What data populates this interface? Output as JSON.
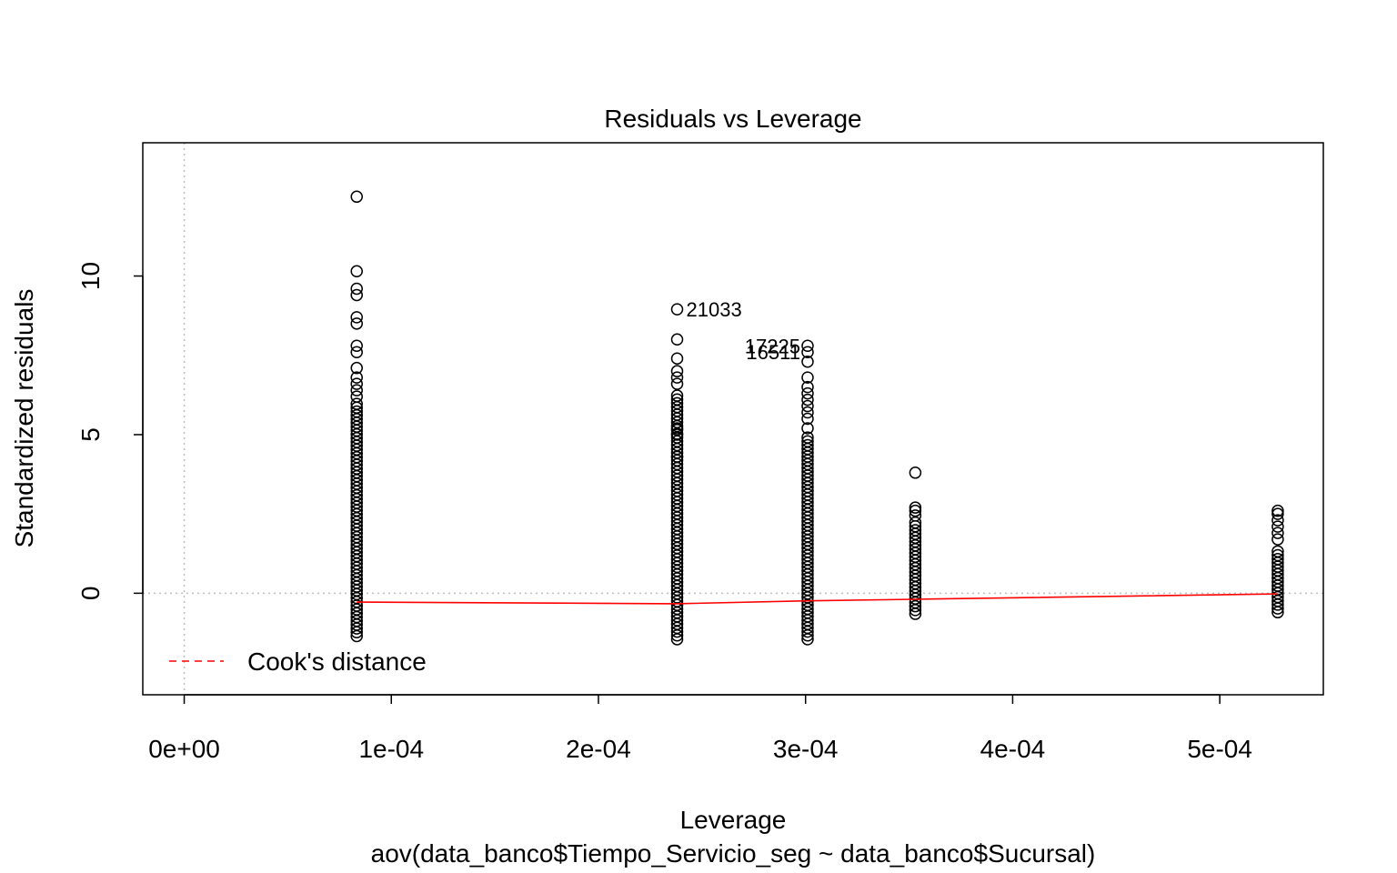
{
  "chart_data": {
    "type": "scatter",
    "title": "Residuals vs Leverage",
    "xlabel": "Leverage",
    "subtitle": "aov(data_banco$Tiempo_Servicio_seg ~ data_banco$Sucursal)",
    "ylabel": "Standardized residuals",
    "xlim": [
      -2e-05,
      0.00055
    ],
    "ylim": [
      -3.2,
      14.2
    ],
    "x_ticks": [
      0,
      0.0001,
      0.0002,
      0.0003,
      0.0004,
      0.0005
    ],
    "x_tick_labels": [
      "0e+00",
      "1e-04",
      "2e-04",
      "3e-04",
      "4e-04",
      "5e-04"
    ],
    "y_ticks": [
      0,
      5,
      10
    ],
    "y_tick_labels": [
      "0",
      "5",
      "10"
    ],
    "reference_lines": {
      "h": 0,
      "v": 0,
      "style": "dotted",
      "color": "#bebebe"
    },
    "groups": [
      {
        "leverage": 8.33e-05,
        "residual_min": -1.35,
        "residual_dense_max": 6.0,
        "outliers": [
          6.2,
          6.4,
          6.6,
          6.8,
          7.1,
          7.6,
          7.8,
          8.5,
          8.7,
          9.4,
          9.6,
          10.15,
          12.5
        ]
      },
      {
        "leverage": 0.000238,
        "residual_min": -1.45,
        "residual_dense_max": 6.3,
        "outliers": [
          4.3,
          5.0,
          5.2,
          6.6,
          6.8,
          7.0,
          7.4,
          8.0,
          8.95
        ]
      },
      {
        "leverage": 0.000301,
        "residual_min": -1.45,
        "residual_dense_max": 5.0,
        "outliers": [
          5.2,
          5.5,
          5.7,
          5.9,
          6.1,
          6.3,
          6.5,
          6.8,
          7.3,
          7.6,
          7.8
        ]
      },
      {
        "leverage": 0.000353,
        "residual_min": -0.65,
        "residual_dense_max": 2.3,
        "outliers": [
          2.45,
          2.6,
          2.7,
          3.8
        ]
      },
      {
        "leverage": 0.000528,
        "residual_min": -0.6,
        "residual_dense_max": 1.4,
        "outliers": [
          1.7,
          1.9,
          2.1,
          2.3,
          2.5,
          2.6
        ]
      }
    ],
    "smooth_line": {
      "color": "#ff0000",
      "x": [
        8.33e-05,
        0.000238,
        0.000301,
        0.000353,
        0.000528
      ],
      "y": [
        -0.28,
        -0.33,
        -0.24,
        -0.19,
        -0.02
      ]
    },
    "point_labels": [
      {
        "text": "21033",
        "x": 0.000238,
        "y": 8.95,
        "pos": "right"
      },
      {
        "text": "17225",
        "x": 0.000301,
        "y": 7.8,
        "pos": "left"
      },
      {
        "text": "16511",
        "x": 0.000301,
        "y": 7.6,
        "pos": "left"
      }
    ],
    "legend": {
      "position": "bottom-left",
      "label": "Cook's distance",
      "color": "#ff0000",
      "line": "dashed"
    },
    "colors": {
      "points": "#000000",
      "smooth": "#ff0000",
      "reference": "#bebebe"
    }
  }
}
